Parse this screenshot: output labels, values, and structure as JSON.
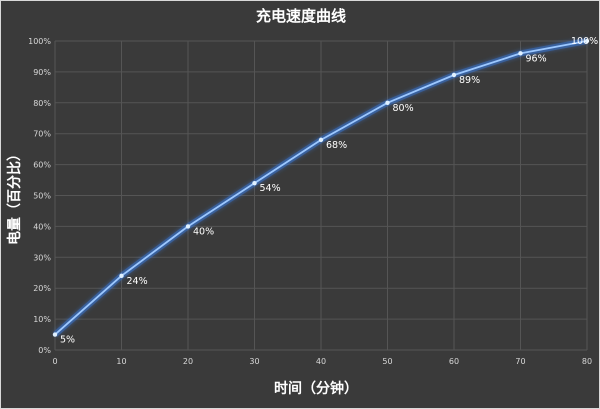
{
  "chart_data": {
    "type": "line",
    "title": "充电速度曲线",
    "xlabel": "时间（分钟）",
    "ylabel": "电量（百分比）",
    "x": [
      0,
      10,
      20,
      30,
      40,
      50,
      60,
      70,
      80
    ],
    "series": [
      {
        "values": [
          5,
          24,
          40,
          54,
          68,
          80,
          89,
          96,
          100
        ],
        "data_labels": [
          "5%",
          "24%",
          "40%",
          "54%",
          "68%",
          "80%",
          "89%",
          "96%",
          "100%"
        ]
      }
    ],
    "xlim": [
      0,
      80
    ],
    "ylim": [
      0,
      100
    ],
    "x_ticks": [
      "0",
      "10",
      "20",
      "30",
      "40",
      "50",
      "60",
      "70",
      "80"
    ],
    "y_ticks": [
      "0%",
      "10%",
      "20%",
      "30%",
      "40%",
      "50%",
      "60%",
      "70%",
      "80%",
      "90%",
      "100%"
    ],
    "grid": true,
    "colors": {
      "line": "#9cc8ff",
      "glow": "#3a78d8",
      "background": "#3a3a3a",
      "text": "#ffffff"
    }
  }
}
